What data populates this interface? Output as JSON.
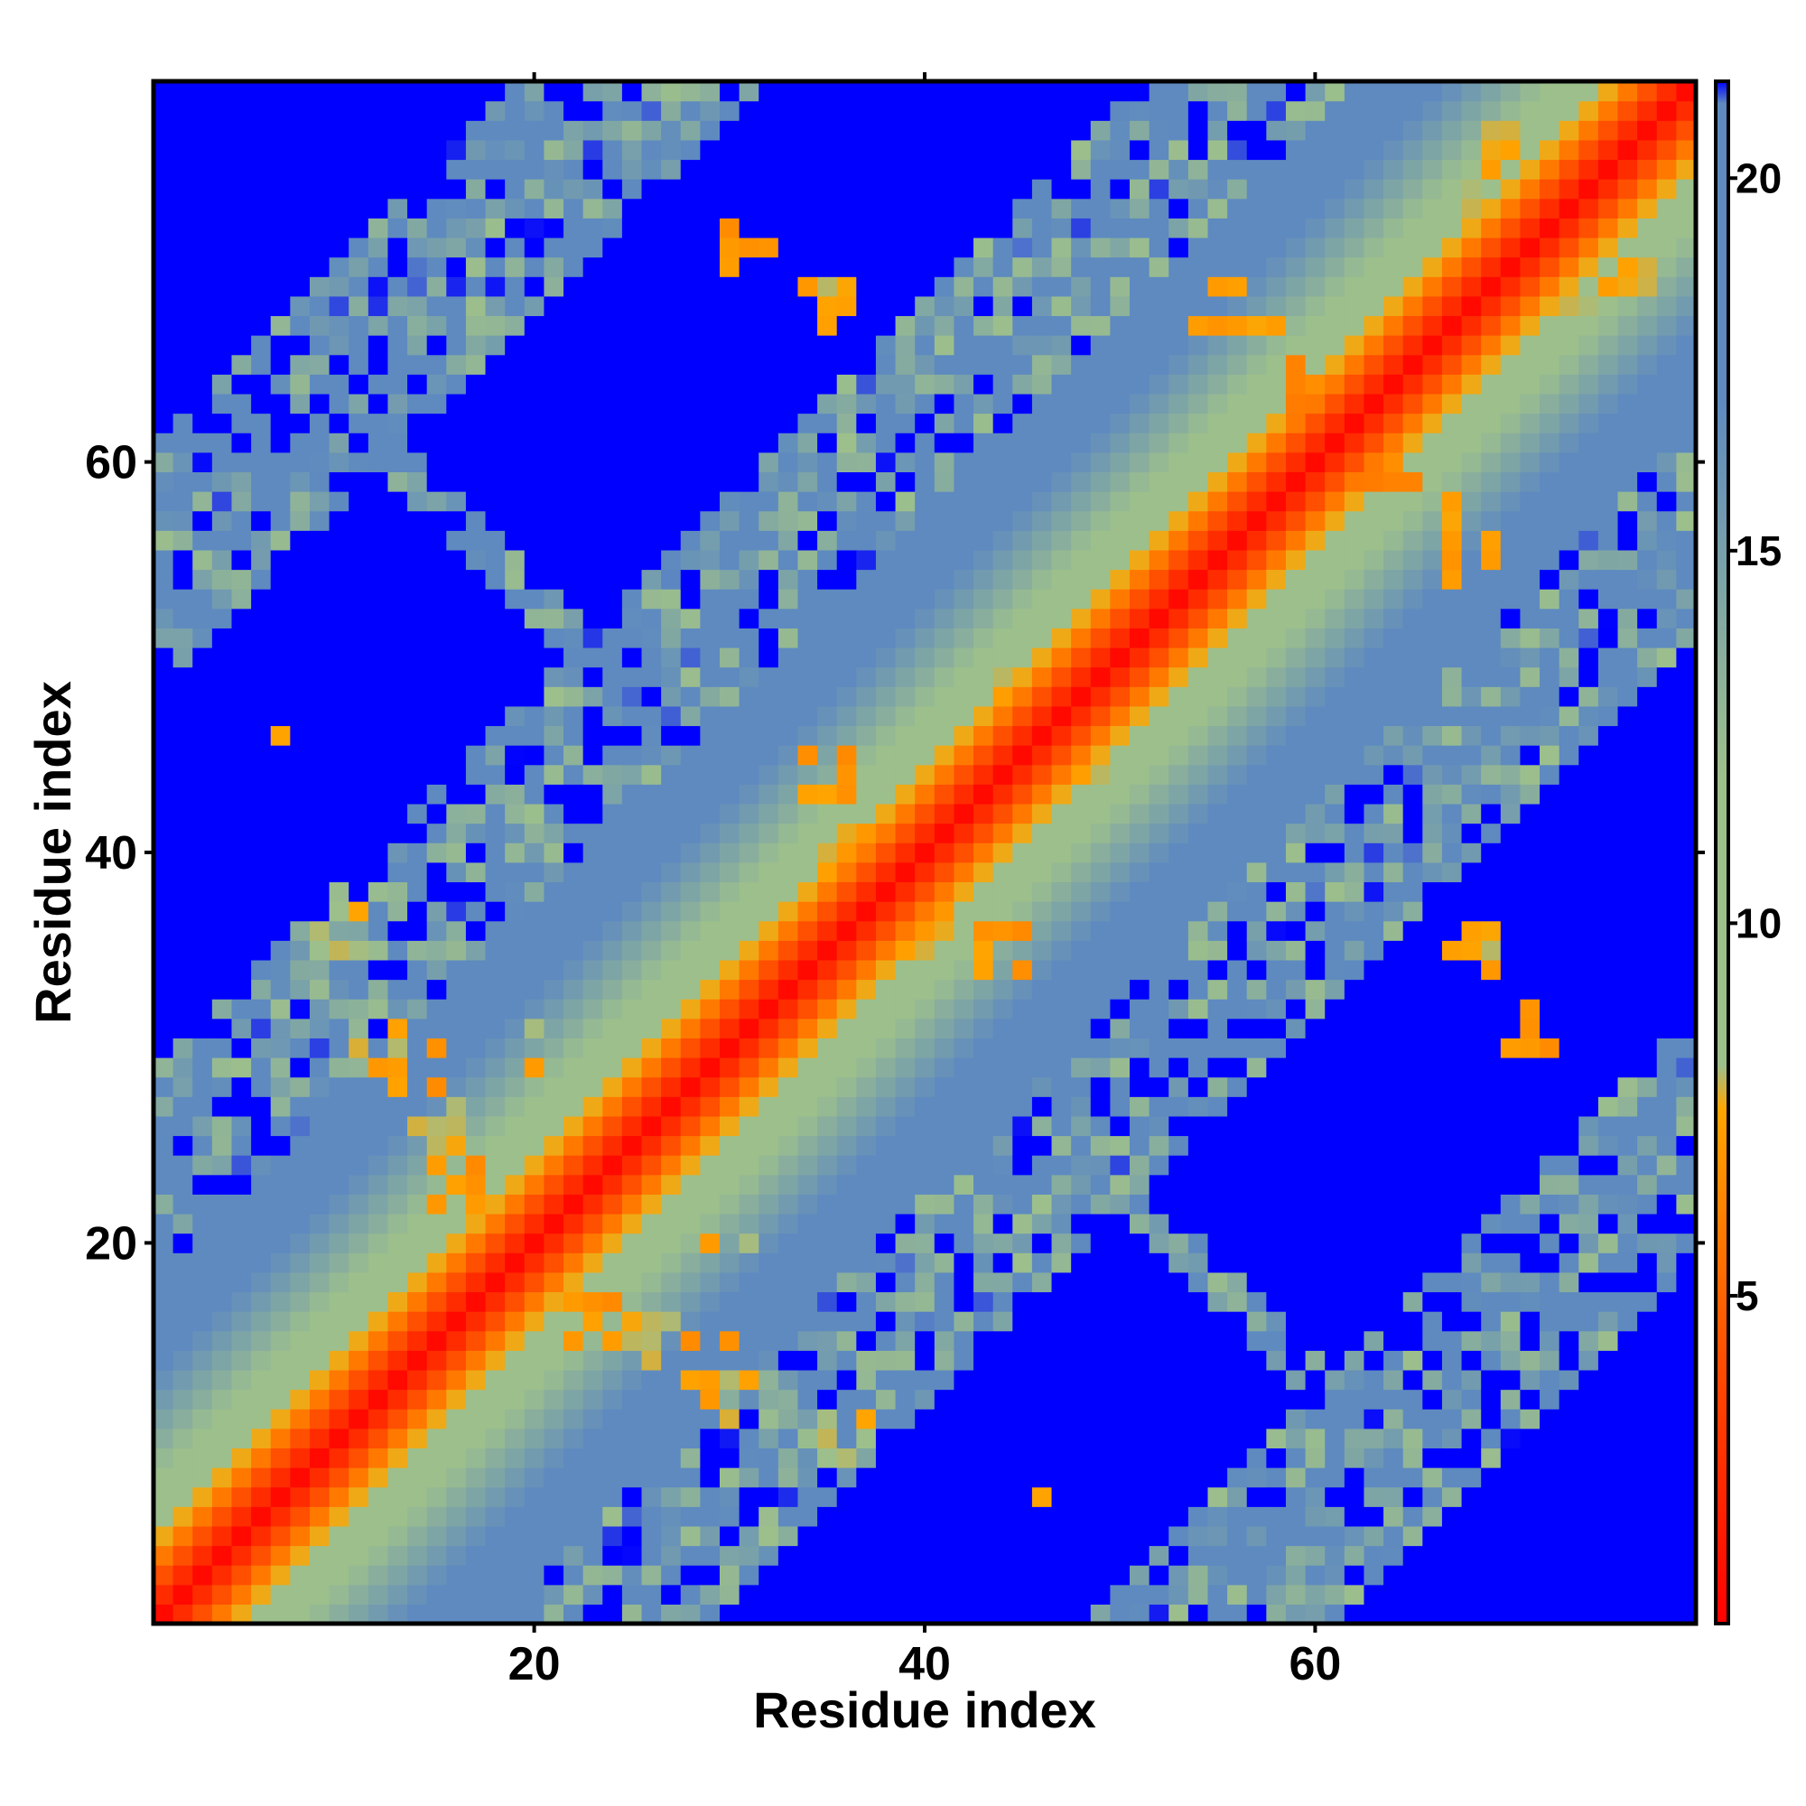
{
  "chart_data": {
    "type": "heatmap",
    "title": "",
    "xlabel": "Residue index",
    "ylabel": "Residue index",
    "n_residues": 79,
    "xlim": [
      1,
      79
    ],
    "ylim": [
      1,
      79
    ],
    "x_ticks": [
      20,
      40,
      60
    ],
    "y_ticks": [
      20,
      40,
      60
    ],
    "colorbar": {
      "ticks": [
        5,
        10,
        15,
        20
      ],
      "range": [
        0.6,
        21.3
      ],
      "stops": [
        {
          "value": 0.6,
          "color": "#ff0000"
        },
        {
          "value": 4.0,
          "color": "#ff4a00"
        },
        {
          "value": 7.5,
          "color": "#ffa500"
        },
        {
          "value": 8.1,
          "color": "#9dbf8c"
        },
        {
          "value": 12.0,
          "color": "#9dbf8c"
        },
        {
          "value": 17.0,
          "color": "#5e8ac0"
        },
        {
          "value": 21.0,
          "color": "#5e8ac0"
        },
        {
          "value": 21.3,
          "color": "#0000ff"
        }
      ]
    },
    "values_description_free": true,
    "cutoff_value": 21.3,
    "distance_model": {
      "diagonal_bands": [
        [
          0,
          1.0
        ],
        [
          1,
          2.6
        ],
        [
          2,
          4.2
        ],
        [
          3,
          5.8
        ],
        [
          4,
          7.6
        ],
        [
          5,
          9.0
        ],
        [
          6,
          10.4
        ],
        [
          7,
          11.6
        ],
        [
          8,
          12.6
        ],
        [
          9,
          13.6
        ],
        [
          10,
          14.5
        ],
        [
          11,
          15.4
        ],
        [
          12,
          16.3
        ],
        [
          13,
          17.2
        ],
        [
          14,
          18.0
        ],
        [
          15,
          18.8
        ],
        [
          16,
          19.6
        ],
        [
          17,
          20.4
        ]
      ],
      "far_regions": [
        {
          "center_i": 24,
          "center_j": 24,
          "radius": 10
        },
        {
          "center_i": 49,
          "center_j": 49,
          "radius": 10
        },
        {
          "center_i": 62,
          "center_j": 62,
          "radius": 8
        }
      ],
      "contact_clusters": [
        {
          "i": 14,
          "j": 29,
          "value": 6.5
        },
        {
          "i": 12,
          "j": 30,
          "value": 6.8
        },
        {
          "i": 16,
          "j": 23,
          "value": 6.2
        },
        {
          "i": 15,
          "j": 26,
          "value": 7.0
        },
        {
          "i": 35,
          "j": 44,
          "value": 6.4
        },
        {
          "i": 40,
          "j": 36,
          "value": 6.6
        },
        {
          "i": 57,
          "j": 66,
          "value": 6.9
        },
        {
          "i": 55,
          "j": 68,
          "value": 6.3
        },
        {
          "i": 60,
          "j": 64,
          "value": 5.8
        },
        {
          "i": 74,
          "j": 69,
          "value": 7.1
        },
        {
          "i": 76,
          "j": 70,
          "value": 6.7
        },
        {
          "i": 45,
          "j": 48,
          "value": 6.9
        },
        {
          "i": 30,
          "j": 20,
          "value": 7.0
        },
        {
          "i": 36,
          "j": 10,
          "value": 7.2
        },
        {
          "i": 71,
          "j": 31,
          "value": 6.5
        },
        {
          "i": 68,
          "j": 35,
          "value": 6.9
        },
        {
          "i": 46,
          "j": 7,
          "value": 7.1
        }
      ]
    }
  }
}
